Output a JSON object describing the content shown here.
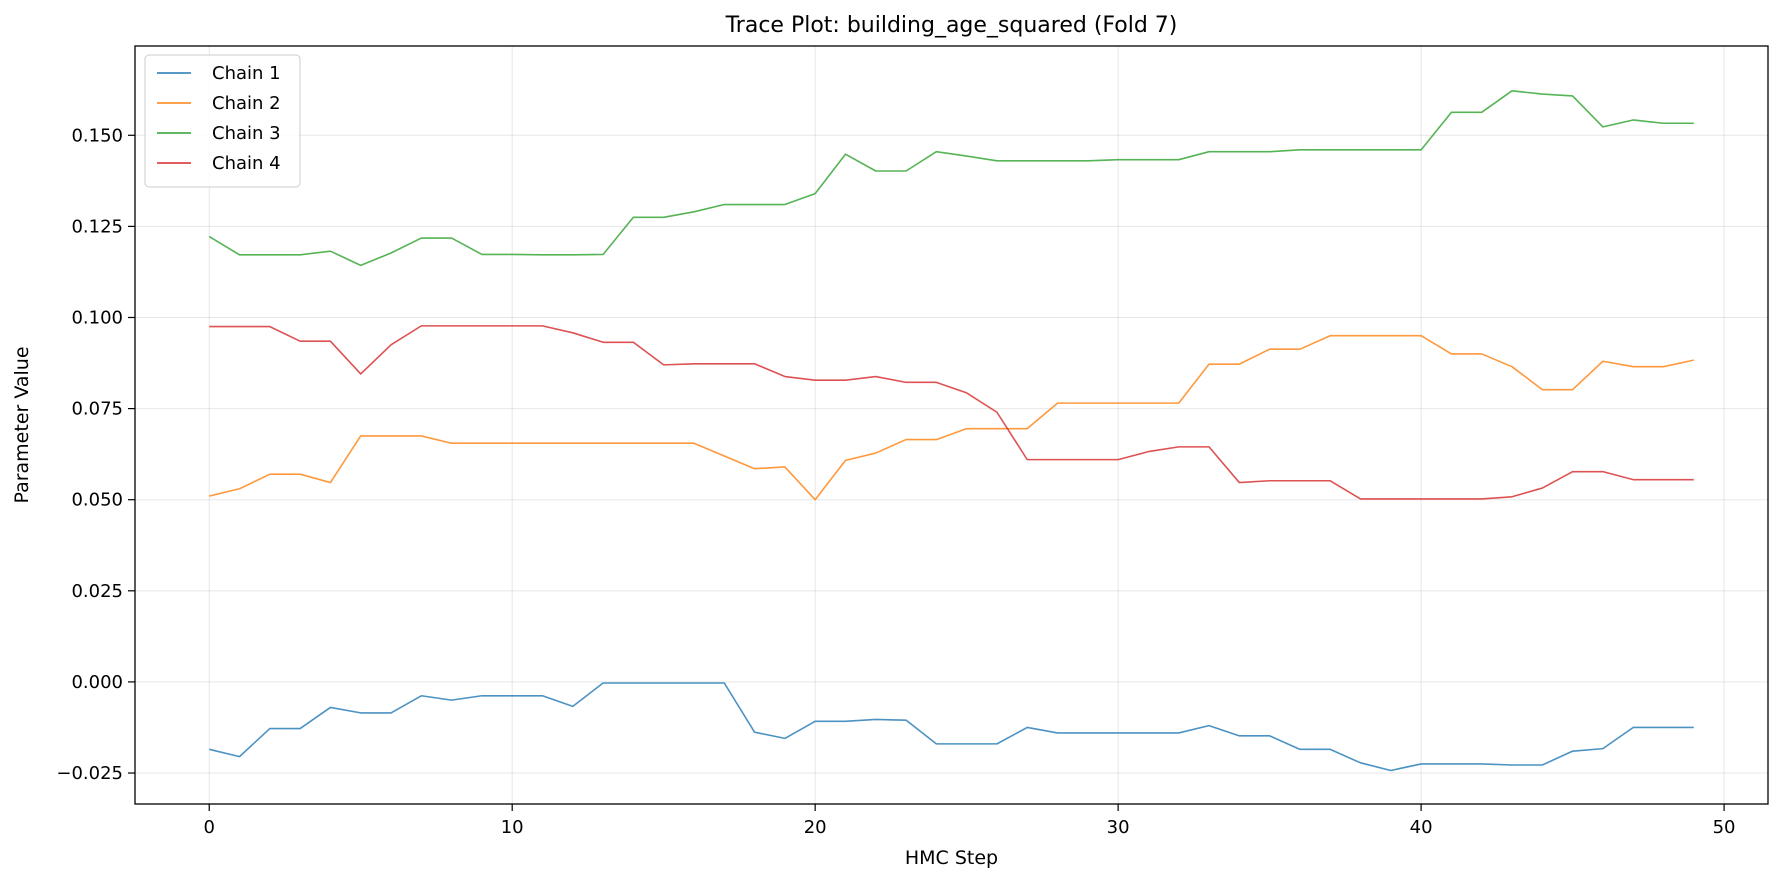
{
  "chart_data": {
    "type": "line",
    "title": "Trace Plot: building_age_squared (Fold 7)",
    "xlabel": "HMC Step",
    "ylabel": "Parameter Value",
    "xlim": [
      -2.45,
      51.45
    ],
    "ylim": [
      -0.0335,
      0.1745
    ],
    "xticks": [
      0,
      10,
      20,
      30,
      40,
      50
    ],
    "xtick_labels": [
      "0",
      "10",
      "20",
      "30",
      "40",
      "50"
    ],
    "yticks": [
      -0.025,
      0.0,
      0.025,
      0.05,
      0.075,
      0.1,
      0.125,
      0.15
    ],
    "ytick_labels": [
      "−0.025",
      "0.000",
      "0.025",
      "0.050",
      "0.075",
      "0.100",
      "0.125",
      "0.150"
    ],
    "grid": true,
    "legend_position": "top-left",
    "x": [
      0,
      1,
      2,
      3,
      4,
      5,
      6,
      7,
      8,
      9,
      10,
      11,
      12,
      13,
      14,
      15,
      16,
      17,
      18,
      19,
      20,
      21,
      22,
      23,
      24,
      25,
      26,
      27,
      28,
      29,
      30,
      31,
      32,
      33,
      34,
      35,
      36,
      37,
      38,
      39,
      40,
      41,
      42,
      43,
      44,
      45,
      46,
      47,
      48,
      49
    ],
    "series": [
      {
        "name": "Chain 1",
        "color": "#1f77b4",
        "values": [
          -0.0185,
          -0.0205,
          -0.0128,
          -0.0128,
          -0.007,
          -0.0085,
          -0.0085,
          -0.0038,
          -0.005,
          -0.0038,
          -0.0038,
          -0.0038,
          -0.0067,
          -0.0003,
          -0.0003,
          -0.0003,
          -0.0003,
          -0.0003,
          -0.0138,
          -0.0155,
          -0.0108,
          -0.0108,
          -0.0103,
          -0.0105,
          -0.017,
          -0.017,
          -0.017,
          -0.0125,
          -0.014,
          -0.014,
          -0.014,
          -0.014,
          -0.014,
          -0.012,
          -0.0148,
          -0.0148,
          -0.0185,
          -0.0185,
          -0.0222,
          -0.0243,
          -0.0225,
          -0.0225,
          -0.0225,
          -0.0228,
          -0.0228,
          -0.019,
          -0.0183,
          -0.0125,
          -0.0125,
          -0.0125
        ]
      },
      {
        "name": "Chain 2",
        "color": "#ff7f0e",
        "values": [
          0.051,
          0.053,
          0.057,
          0.057,
          0.0547,
          0.0675,
          0.0675,
          0.0675,
          0.0655,
          0.0655,
          0.0655,
          0.0655,
          0.0655,
          0.0655,
          0.0655,
          0.0655,
          0.0655,
          0.062,
          0.0585,
          0.059,
          0.05,
          0.0608,
          0.0628,
          0.0665,
          0.0665,
          0.0695,
          0.0695,
          0.0695,
          0.0765,
          0.0765,
          0.0765,
          0.0765,
          0.0765,
          0.0872,
          0.0872,
          0.0913,
          0.0913,
          0.095,
          0.095,
          0.095,
          0.095,
          0.09,
          0.09,
          0.0865,
          0.0802,
          0.0802,
          0.088,
          0.0865,
          0.0865,
          0.0883
        ]
      },
      {
        "name": "Chain 3",
        "color": "#2ca02c",
        "values": [
          0.1222,
          0.1172,
          0.1172,
          0.1172,
          0.1182,
          0.1143,
          0.1177,
          0.1218,
          0.1218,
          0.1173,
          0.1173,
          0.1172,
          0.1172,
          0.1173,
          0.1275,
          0.1275,
          0.129,
          0.131,
          0.131,
          0.131,
          0.134,
          0.1448,
          0.1402,
          0.1402,
          0.1455,
          0.1443,
          0.143,
          0.143,
          0.143,
          0.143,
          0.1433,
          0.1433,
          0.1433,
          0.1455,
          0.1455,
          0.1455,
          0.146,
          0.146,
          0.146,
          0.146,
          0.146,
          0.1563,
          0.1563,
          0.1622,
          0.1613,
          0.1608,
          0.1523,
          0.1542,
          0.1533,
          0.1533
        ]
      },
      {
        "name": "Chain 4",
        "color": "#d62728",
        "values": [
          0.0975,
          0.0975,
          0.0975,
          0.0935,
          0.0935,
          0.0845,
          0.0925,
          0.0977,
          0.0977,
          0.0977,
          0.0977,
          0.0977,
          0.0958,
          0.0932,
          0.0932,
          0.087,
          0.0873,
          0.0873,
          0.0873,
          0.0838,
          0.0828,
          0.0828,
          0.0838,
          0.0822,
          0.0822,
          0.0793,
          0.074,
          0.061,
          0.061,
          0.061,
          0.061,
          0.0632,
          0.0645,
          0.0645,
          0.0547,
          0.0552,
          0.0552,
          0.0552,
          0.0502,
          0.0502,
          0.0502,
          0.0502,
          0.0502,
          0.0508,
          0.0532,
          0.0577,
          0.0577,
          0.0555,
          0.0555,
          0.0555
        ]
      }
    ]
  }
}
